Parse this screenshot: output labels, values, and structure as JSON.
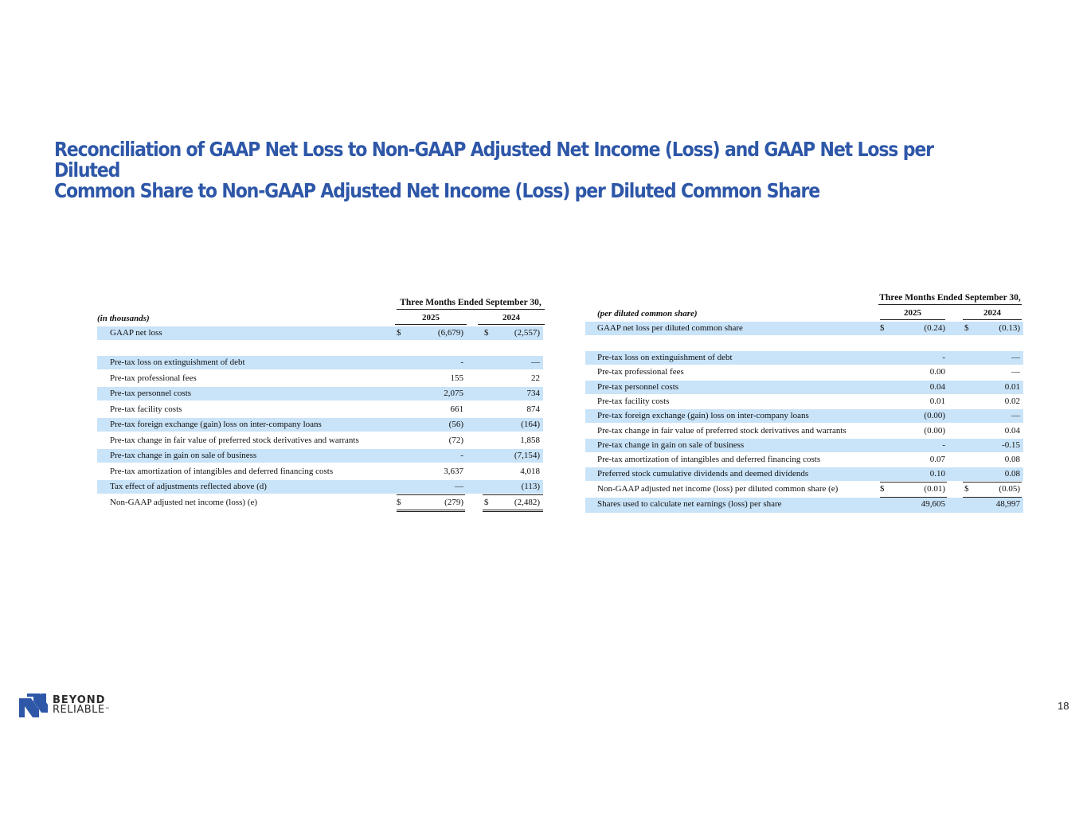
{
  "slide": {
    "title_line1": "Reconciliation of GAAP Net Loss to Non-GAAP Adjusted Net Income (Loss) and GAAP Net Loss per Diluted",
    "title_line2": "Common Share to Non-GAAP Adjusted Net Income (Loss) per Diluted Common Share",
    "page_number": "18",
    "logo_word1": "BEYOND",
    "logo_word2": "RELIABLE",
    "logo_tm": "™"
  },
  "left_table": {
    "period_header": "Three Months Ended September 30,",
    "units": "(in thousands)",
    "year1": "2025",
    "year2": "2024",
    "currency": "$",
    "rows": [
      {
        "label": "GAAP net loss",
        "v1": "(6,679)",
        "v2": "(2,557)"
      },
      {
        "label": "Pre-tax loss on extinguishment of debt",
        "v1": "-",
        "v2": "—"
      },
      {
        "label": "Pre-tax professional fees",
        "v1": "155",
        "v2": "22"
      },
      {
        "label": "Pre-tax personnel costs",
        "v1": "2,075",
        "v2": "734"
      },
      {
        "label": "Pre-tax facility costs",
        "v1": "661",
        "v2": "874"
      },
      {
        "label": "Pre-tax foreign exchange (gain) loss on inter-company loans",
        "v1": "(56)",
        "v2": "(164)"
      },
      {
        "label": "Pre-tax change in fair value of preferred stock derivatives and warrants",
        "v1": "(72)",
        "v2": "1,858"
      },
      {
        "label": "Pre-tax change in gain on sale of business",
        "v1": "-",
        "v2": "(7,154)"
      },
      {
        "label": "Pre-tax amortization of intangibles and deferred financing costs",
        "v1": "3,637",
        "v2": "4,018"
      },
      {
        "label": "Tax effect of adjustments reflected above (d)",
        "v1": "—",
        "v2": "(113)"
      },
      {
        "label": "Non-GAAP adjusted net income (loss)  (e)",
        "v1": "(279)",
        "v2": "(2,482)"
      }
    ]
  },
  "right_table": {
    "period_header": "Three Months Ended September 30,",
    "units": "(per diluted common share)",
    "year1": "2025",
    "year2": "2024",
    "currency": "$",
    "rows": [
      {
        "label": "GAAP net loss per diluted common share",
        "v1": "(0.24)",
        "v2": "(0.13)"
      },
      {
        "label": "Pre-tax loss on extinguishment of debt",
        "v1": "-",
        "v2": "—"
      },
      {
        "label": "Pre-tax professional fees",
        "v1": "0.00",
        "v2": "—"
      },
      {
        "label": "Pre-tax personnel costs",
        "v1": "0.04",
        "v2": "0.01"
      },
      {
        "label": "Pre-tax facility costs",
        "v1": "0.01",
        "v2": "0.02"
      },
      {
        "label": "Pre-tax foreign exchange (gain) loss on inter-company loans",
        "v1": "(0.00)",
        "v2": "—"
      },
      {
        "label": "Pre-tax change in fair value of preferred stock derivatives and warrants",
        "v1": "(0.00)",
        "v2": "0.04"
      },
      {
        "label": "Pre-tax change in gain on sale of business",
        "v1": "-",
        "v2": "-0.15"
      },
      {
        "label": "Pre-tax amortization of intangibles and deferred financing costs",
        "v1": "0.07",
        "v2": "0.08"
      },
      {
        "label": "Preferred stock cumulative dividends and deemed dividends",
        "v1": "0.10",
        "v2": "0.08"
      },
      {
        "label": "Non-GAAP adjusted net income (loss) per diluted common share  (e)",
        "v1": "(0.01)",
        "v2": "(0.05)"
      },
      {
        "label": "Shares used to calculate net earnings (loss) per share",
        "v1": "49,605",
        "v2": "48,997"
      }
    ]
  },
  "colors": {
    "title": "#2e57a8",
    "row_shade": "#c9e3f8",
    "logo_blue": "#2e57a8"
  }
}
